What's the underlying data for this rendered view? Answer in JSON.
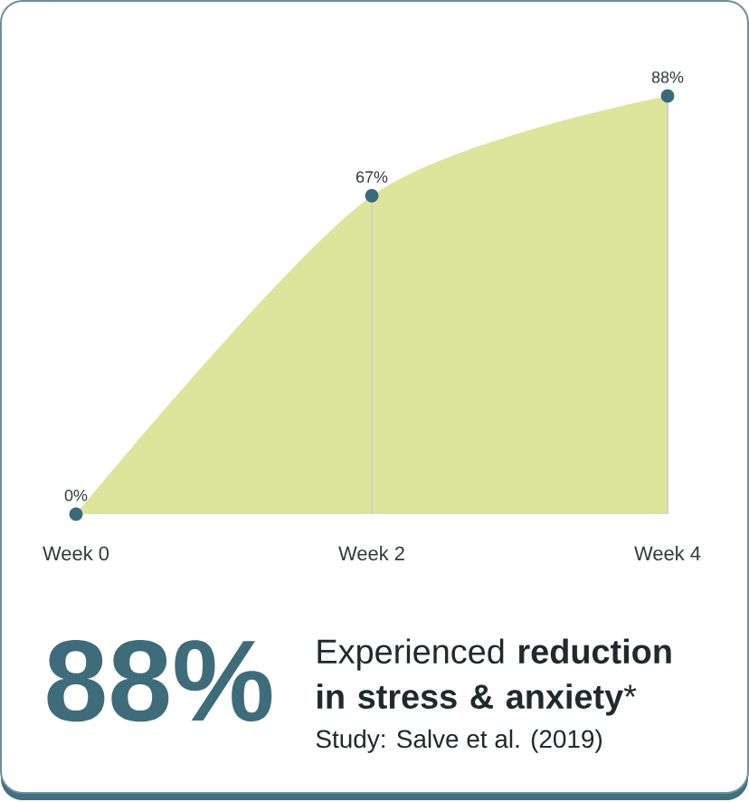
{
  "chart_data": {
    "type": "area",
    "title": "88%",
    "subtitle": "Experienced **reduction in stress & anxiety***",
    "annotations": [
      "Study: Salve et al. (2019)"
    ],
    "categories": [
      "Week 0",
      "Week 2",
      "Week 4"
    ],
    "series": [
      {
        "color": "#dde59c",
        "values": [
          0,
          67,
          88
        ]
      },
      {
        "type": "lollipop",
        "color": "#3c6a7a",
        "values": [
          0,
          67,
          88
        ],
        "value_labels": [
          "0%",
          "67%",
          "88%"
        ]
      }
    ]
  }
}
